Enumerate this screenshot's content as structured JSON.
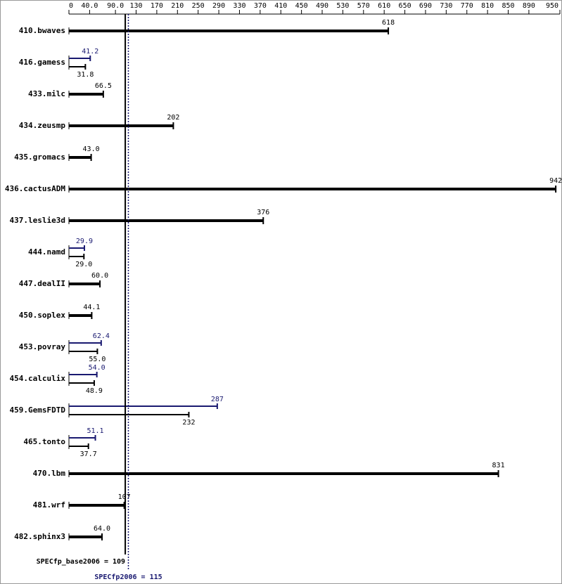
{
  "chart_data": {
    "type": "bar",
    "categories": [
      "410.bwaves",
      "416.gamess",
      "433.milc",
      "434.zeusmp",
      "435.gromacs",
      "436.cactusADM",
      "437.leslie3d",
      "444.namd",
      "447.dealII",
      "450.soplex",
      "453.povray",
      "454.calculix",
      "459.GemsFDTD",
      "465.tonto",
      "470.lbm",
      "481.wrf",
      "482.sphinx3"
    ],
    "series": [
      {
        "color": "#000000",
        "values": [
          618,
          31.8,
          66.5,
          202,
          43.0,
          942,
          376,
          29.0,
          60.0,
          44.1,
          55.0,
          48.9,
          232,
          37.7,
          831,
          107,
          64.0
        ],
        "value_labels": [
          "618",
          "31.8",
          "66.5",
          "202",
          "43.0",
          "942",
          "376",
          "29.0",
          "60.0",
          "44.1",
          "55.0",
          "48.9",
          "232",
          "37.7",
          "831",
          "107",
          "64.0"
        ]
      },
      {
        "color": "#191970",
        "values": [
          null,
          41.2,
          null,
          null,
          null,
          null,
          null,
          29.9,
          null,
          null,
          62.4,
          54.0,
          287,
          51.1,
          null,
          null,
          null
        ],
        "value_labels": [
          null,
          "41.2",
          null,
          null,
          null,
          null,
          null,
          "29.9",
          null,
          null,
          "62.4",
          "54.0",
          "287",
          "51.1",
          null,
          null,
          null
        ]
      }
    ],
    "xlim": [
      0,
      950
    ],
    "xticks": [
      0,
      {
        "value": 40,
        "label": "40.0"
      },
      {
        "value": 90,
        "label": "90.0"
      },
      130,
      170,
      210,
      250,
      290,
      330,
      370,
      410,
      450,
      490,
      530,
      570,
      610,
      650,
      690,
      730,
      770,
      810,
      850,
      890,
      950
    ],
    "reference_lines": [
      {
        "value": 109,
        "label": "SPECfp_base2006 = 109",
        "color": "#000000"
      },
      {
        "value": 115,
        "label": "SPECfp2006 = 115",
        "color": "#191970"
      }
    ]
  }
}
